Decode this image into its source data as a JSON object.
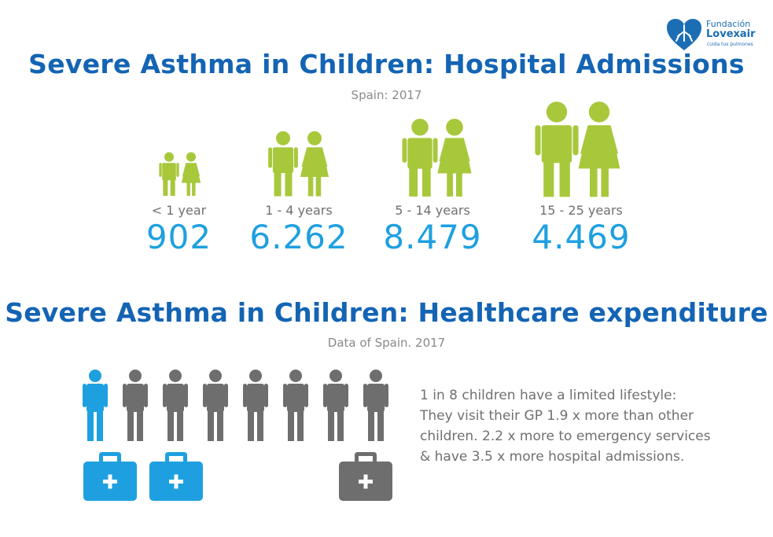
{
  "logo": {
    "line1": "Fundación",
    "line2": "Lovexair",
    "line3": "cuida tus pulmones"
  },
  "admissions": {
    "title": "Severe Asthma in Children: Hospital Admissions",
    "subtitle": "Spain: 2017",
    "groups": [
      {
        "label": "< 1 year",
        "value": "902"
      },
      {
        "label": "1 - 4 years",
        "value": "6.262"
      },
      {
        "label": "5 - 14 years",
        "value": "8.479"
      },
      {
        "label": "15 - 25 years",
        "value": "4.469"
      }
    ]
  },
  "expenditure": {
    "title": "Severe Asthma in Children: Healthcare expenditure",
    "subtitle": "Data of Spain. 2017",
    "highlighted_children": 1,
    "total_children": 8,
    "description": [
      "1 in 8 children have a limited lifestyle:",
      "They visit their GP 1.9 x more than other",
      "children. 2.2 x more to emergency services",
      "&  have 3.5 x more hospital admissions."
    ]
  },
  "colors": {
    "title": "#1464b4",
    "value": "#1ea0e0",
    "figure_green": "#a8c83c",
    "highlight_blue": "#1ea0e0",
    "grey": "#6e6e6e",
    "text_grey": "#707070"
  },
  "icons": {
    "people": "boy-girl-icon",
    "child": "child-icon",
    "kit": "first-aid-kit-icon"
  }
}
